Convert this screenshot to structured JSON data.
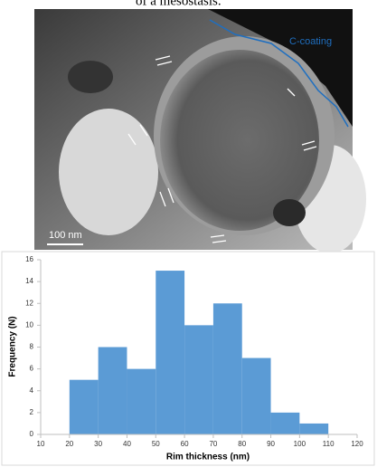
{
  "caption_fragment": "of a mesostasis.",
  "image": {
    "annotation": "C-coating",
    "scale_bar": "100 nm"
  },
  "chart_data": {
    "type": "histogram",
    "bins": [
      20,
      30,
      40,
      50,
      60,
      70,
      80,
      90,
      100,
      110
    ],
    "counts": [
      5,
      8,
      6,
      15,
      10,
      12,
      7,
      2,
      1
    ],
    "color": "#5b9bd5",
    "x_label": "Rim thickness (nm)",
    "y_label": "Frequency (N)",
    "xlim": [
      10,
      120
    ],
    "xticks": [
      10,
      20,
      30,
      40,
      50,
      60,
      70,
      80,
      90,
      100,
      110,
      120
    ],
    "ylim": [
      0,
      16
    ],
    "yticks": [
      0,
      2,
      4,
      6,
      8,
      10,
      12,
      14,
      16
    ]
  }
}
